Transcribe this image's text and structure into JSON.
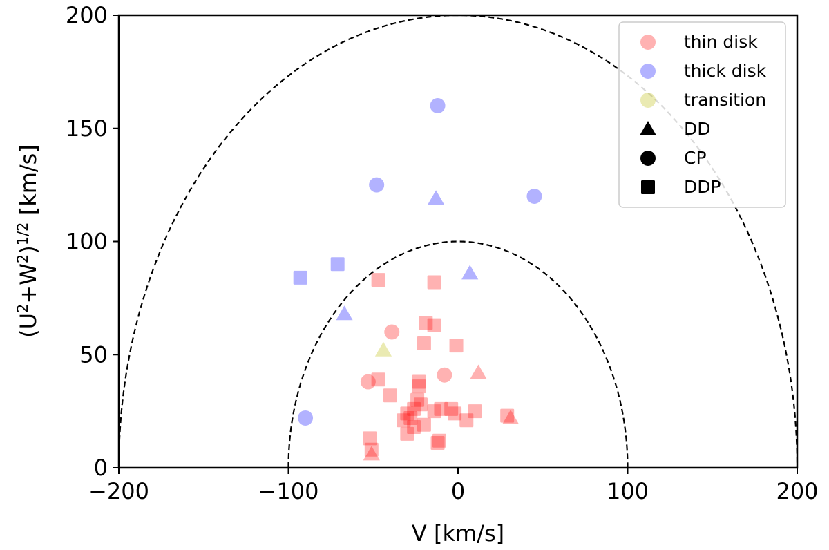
{
  "chart_data": {
    "type": "scatter",
    "xlabel": "V [km/s]",
    "ylabel": {
      "prefix": "(U",
      "sup1": "2",
      "mid": "+W",
      "sup2": "2",
      "close": ")",
      "sup3": "1/2",
      "suffix": " [km/s]"
    },
    "xlim": [
      -200,
      200
    ],
    "ylim": [
      0,
      200
    ],
    "xticks": [
      -200,
      -100,
      0,
      100,
      200
    ],
    "yticks": [
      0,
      50,
      100,
      150,
      200
    ],
    "xtick_labels": [
      "−200",
      "−100",
      "0",
      "100",
      "200"
    ],
    "ytick_labels": [
      "0",
      "50",
      "100",
      "150",
      "200"
    ],
    "grid": false,
    "legend_position": "top-right",
    "boundaries": [
      {
        "name": "100 km/s",
        "radius": 100,
        "style": "dashed"
      },
      {
        "name": "200 km/s",
        "radius": 200,
        "style": "dashed"
      }
    ],
    "populations": [
      {
        "name": "thin disk",
        "label": "thin disk",
        "color": "#ff0000"
      },
      {
        "name": "thick disk",
        "label": "thick disk",
        "color": "#0000ff"
      },
      {
        "name": "transition",
        "label": "transition",
        "color": "#b8b800"
      }
    ],
    "marker_types": [
      {
        "name": "DD",
        "label": "DD",
        "shape": "triangle"
      },
      {
        "name": "CP",
        "label": "CP",
        "shape": "circle"
      },
      {
        "name": "DDP",
        "label": "DDP",
        "shape": "square"
      }
    ],
    "series": [
      {
        "population": "thick disk",
        "type": "CP",
        "x": -12,
        "y": 160
      },
      {
        "population": "thick disk",
        "type": "CP",
        "x": -48,
        "y": 125
      },
      {
        "population": "thick disk",
        "type": "DD",
        "x": -13,
        "y": 119
      },
      {
        "population": "thick disk",
        "type": "CP",
        "x": 45,
        "y": 120
      },
      {
        "population": "thick disk",
        "type": "DDP",
        "x": -71,
        "y": 90
      },
      {
        "population": "thick disk",
        "type": "DDP",
        "x": -93,
        "y": 84
      },
      {
        "population": "thick disk",
        "type": "DD",
        "x": 7,
        "y": 86
      },
      {
        "population": "thick disk",
        "type": "DD",
        "x": -67,
        "y": 68
      },
      {
        "population": "thick disk",
        "type": "CP",
        "x": -90,
        "y": 22
      },
      {
        "population": "transition",
        "type": "DD",
        "x": -44,
        "y": 52
      },
      {
        "population": "thin disk",
        "type": "DDP",
        "x": -47,
        "y": 83
      },
      {
        "population": "thin disk",
        "type": "DDP",
        "x": -14,
        "y": 82
      },
      {
        "population": "thin disk",
        "type": "CP",
        "x": -39,
        "y": 60
      },
      {
        "population": "thin disk",
        "type": "DDP",
        "x": -19,
        "y": 64
      },
      {
        "population": "thin disk",
        "type": "DDP",
        "x": -14,
        "y": 63
      },
      {
        "population": "thin disk",
        "type": "DDP",
        "x": -20,
        "y": 55
      },
      {
        "population": "thin disk",
        "type": "DDP",
        "x": -1,
        "y": 54
      },
      {
        "population": "thin disk",
        "type": "CP",
        "x": -8,
        "y": 41
      },
      {
        "population": "thin disk",
        "type": "DD",
        "x": 12,
        "y": 42
      },
      {
        "population": "thin disk",
        "type": "CP",
        "x": -53,
        "y": 38
      },
      {
        "population": "thin disk",
        "type": "DDP",
        "x": -47,
        "y": 39
      },
      {
        "population": "thin disk",
        "type": "DDP",
        "x": -23,
        "y": 38
      },
      {
        "population": "thin disk",
        "type": "DDP",
        "x": -23,
        "y": 36
      },
      {
        "population": "thin disk",
        "type": "DDP",
        "x": -40,
        "y": 32
      },
      {
        "population": "thin disk",
        "type": "DDP",
        "x": -24,
        "y": 30
      },
      {
        "population": "thin disk",
        "type": "DDP",
        "x": -22,
        "y": 28
      },
      {
        "population": "thin disk",
        "type": "DDP",
        "x": -26,
        "y": 26
      },
      {
        "population": "thin disk",
        "type": "DDP",
        "x": -10,
        "y": 26
      },
      {
        "population": "thin disk",
        "type": "DDP",
        "x": -14,
        "y": 25
      },
      {
        "population": "thin disk",
        "type": "DDP",
        "x": -2,
        "y": 24
      },
      {
        "population": "thin disk",
        "type": "DDP",
        "x": -4,
        "y": 26
      },
      {
        "population": "thin disk",
        "type": "DDP",
        "x": 10,
        "y": 25
      },
      {
        "population": "thin disk",
        "type": "DDP",
        "x": -30,
        "y": 24
      },
      {
        "population": "thin disk",
        "type": "DDP",
        "x": -28,
        "y": 22
      },
      {
        "population": "thin disk",
        "type": "DDP",
        "x": -32,
        "y": 21
      },
      {
        "population": "thin disk",
        "type": "DDP",
        "x": -26,
        "y": 18
      },
      {
        "population": "thin disk",
        "type": "DDP",
        "x": -20,
        "y": 19
      },
      {
        "population": "thin disk",
        "type": "DDP",
        "x": 5,
        "y": 21
      },
      {
        "population": "thin disk",
        "type": "DDP",
        "x": 29,
        "y": 23
      },
      {
        "population": "thin disk",
        "type": "DD",
        "x": 31,
        "y": 22
      },
      {
        "population": "thin disk",
        "type": "DDP",
        "x": -30,
        "y": 15
      },
      {
        "population": "thin disk",
        "type": "DDP",
        "x": -52,
        "y": 13
      },
      {
        "population": "thin disk",
        "type": "DDP",
        "x": -11,
        "y": 12
      },
      {
        "population": "thin disk",
        "type": "DDP",
        "x": -12,
        "y": 11
      },
      {
        "population": "thin disk",
        "type": "DDP",
        "x": -51,
        "y": 8
      },
      {
        "population": "thin disk",
        "type": "DD",
        "x": -51,
        "y": 6
      }
    ]
  }
}
